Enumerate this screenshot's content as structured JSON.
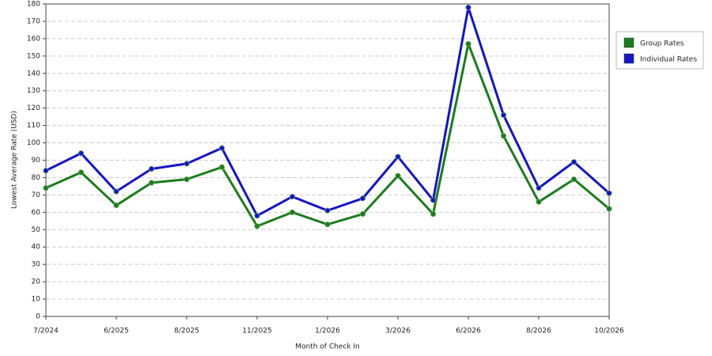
{
  "chart_data": {
    "type": "line",
    "x_label": "Month of Check In",
    "y_label": "Lowest Average Rate (USD)",
    "categories": [
      "7/2024",
      null,
      "6/2025",
      null,
      "8/2025",
      null,
      "11/2025",
      null,
      "1/2026",
      null,
      "3/2026",
      null,
      "6/2026",
      null,
      "8/2026",
      null,
      "10/2026"
    ],
    "series": [
      {
        "name": "Group Rates",
        "color": "#1b7d1b",
        "values": [
          74,
          83,
          64,
          77,
          79,
          86,
          52,
          60,
          53,
          59,
          81,
          59,
          157,
          104,
          66,
          79,
          62
        ]
      },
      {
        "name": "Individual Rates",
        "color": "#1414c8",
        "values": [
          84,
          94,
          72,
          85,
          88,
          97,
          58,
          69,
          61,
          68,
          92,
          67,
          178,
          116,
          74,
          89,
          71
        ]
      }
    ],
    "ylim": [
      0,
      180
    ],
    "yticks": [
      0,
      10,
      20,
      30,
      40,
      50,
      60,
      70,
      80,
      90,
      100,
      110,
      120,
      130,
      140,
      150,
      160,
      170,
      180
    ],
    "grid": true,
    "legend": "top-right"
  }
}
